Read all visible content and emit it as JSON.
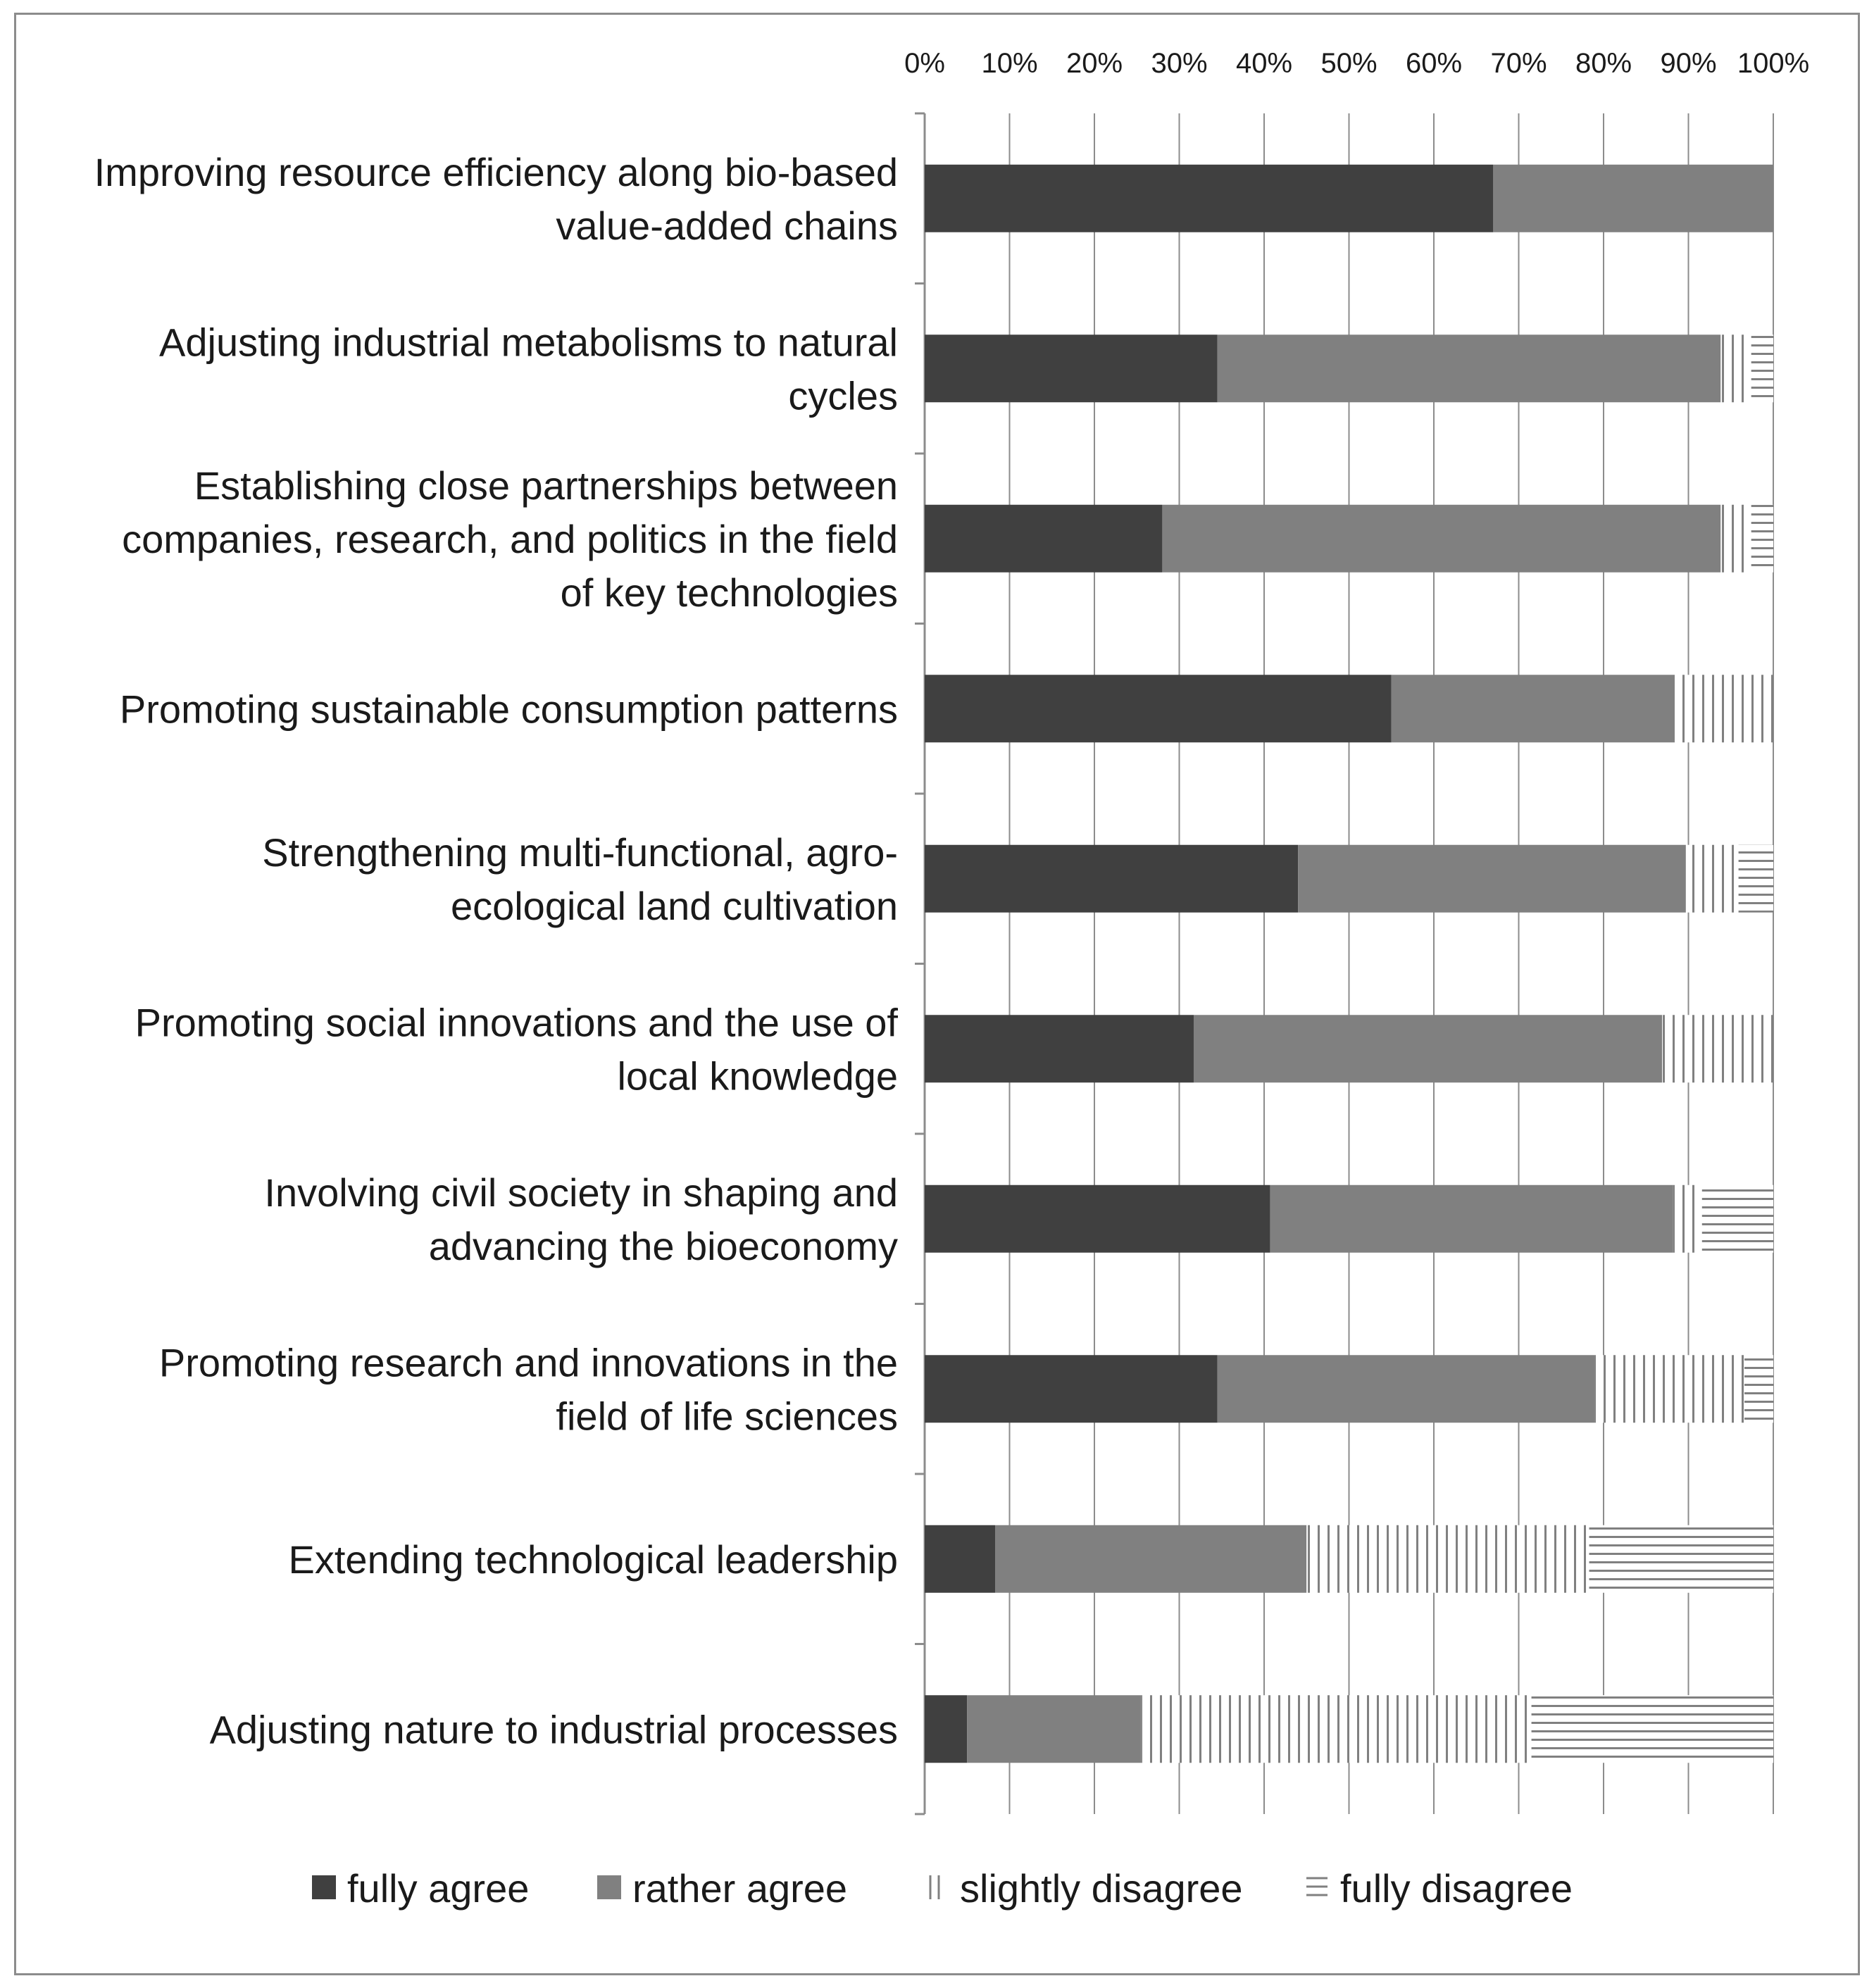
{
  "chart_data": {
    "type": "bar",
    "orientation": "horizontal",
    "stacking": "percent",
    "title": "",
    "xlabel": "",
    "ylabel": "",
    "xlim": [
      0,
      100
    ],
    "x_ticks": [
      "0%",
      "10%",
      "20%",
      "30%",
      "40%",
      "50%",
      "60%",
      "70%",
      "80%",
      "90%",
      "100%"
    ],
    "grid": true,
    "legend_position": "bottom",
    "categories": [
      [
        "Improving resource efficiency along bio-based",
        "value-added chains"
      ],
      [
        "Adjusting industrial metabolisms to natural",
        "cycles"
      ],
      [
        "Establishing close partnerships between",
        "companies, research, and politics in the field",
        "of key technologies"
      ],
      [
        "Promoting sustainable consumption patterns"
      ],
      [
        "Strengthening multi-functional, agro-",
        "ecological land cultivation"
      ],
      [
        "Promoting social innovations and the use of",
        "local knowledge"
      ],
      [
        "Involving civil society in shaping and",
        "advancing the bioeconomy"
      ],
      [
        "Promoting research and innovations in the",
        "field of life sciences"
      ],
      [
        "Extending technological leadership"
      ],
      [
        "Adjusting nature to industrial processes"
      ]
    ],
    "series": [
      {
        "name": "fully agree",
        "fill": "solid",
        "color": "#404040",
        "values": [
          67,
          34.5,
          28,
          55,
          44,
          31.7,
          40.7,
          34.5,
          8.3,
          5
        ]
      },
      {
        "name": "rather agree",
        "fill": "solid",
        "color": "#808080",
        "values": [
          33,
          59.3,
          65.8,
          33.3,
          45.7,
          55.2,
          47.5,
          44.5,
          36.7,
          20.5
        ]
      },
      {
        "name": "slightly disagree",
        "fill": "vertical-lines",
        "color": "#808080",
        "values": [
          0,
          3.6,
          3.6,
          11.7,
          6.2,
          13.1,
          3.4,
          17.6,
          33.3,
          46
        ]
      },
      {
        "name": "fully disagree",
        "fill": "horizontal-lines",
        "color": "#808080",
        "values": [
          0,
          2.6,
          2.6,
          0,
          4.1,
          0,
          8.4,
          3.4,
          21.7,
          28.5
        ]
      }
    ]
  }
}
